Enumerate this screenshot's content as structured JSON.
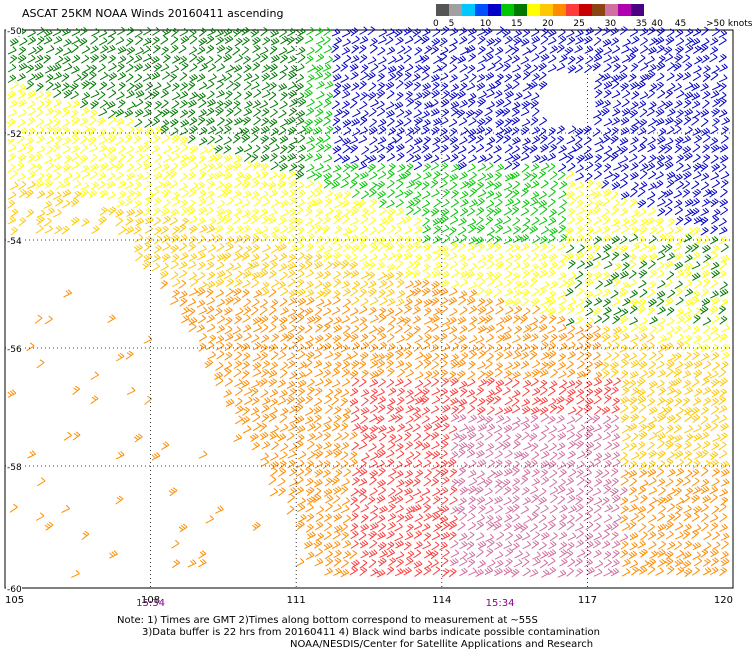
{
  "title": "ASCAT 25KM NOAA Winds 20160411 ascending",
  "legend": {
    "colors": [
      "#555555",
      "#a0a0a0",
      "#00c8ff",
      "#0050ff",
      "#0000c8",
      "#00c800",
      "#007800",
      "#ffff00",
      "#ffc800",
      "#ff8c00",
      "#ff3c3c",
      "#c80000",
      "#8b4513",
      "#d070a0",
      "#b000b0",
      "#4b0082"
    ],
    "labels": [
      {
        "text": "0",
        "at": 0
      },
      {
        "text": "5",
        "at": 1
      },
      {
        "text": "10",
        "at": 3
      },
      {
        "text": "15",
        "at": 5
      },
      {
        "text": "20",
        "at": 7
      },
      {
        "text": "25",
        "at": 9
      },
      {
        "text": "30",
        "at": 11
      },
      {
        "text": "35",
        "at": 13
      },
      {
        "text": "40",
        "at": 14
      },
      {
        "text": "45",
        "at": 15.5
      },
      {
        "text": ">50 knots",
        "at": 17.5
      }
    ]
  },
  "map": {
    "lon_range": [
      105,
      120
    ],
    "lat_range": [
      -60,
      -50
    ],
    "lon_ticks": [
      "105",
      "108",
      "111",
      "114",
      "117",
      "120"
    ],
    "lat_ticks": [
      "-50",
      "-52",
      "-54",
      "-56",
      "-58",
      "-60"
    ],
    "grid": "dotted",
    "times": [
      {
        "text": "15:34",
        "lon": 108
      },
      {
        "text": "15:34",
        "lon": 115.2
      }
    ],
    "wind_colors": {
      "dark_green": "#007800",
      "green": "#00c800",
      "blue": "#0000c8",
      "yellow": "#ffff00",
      "light_orange": "#ffc800",
      "orange": "#ff8c00",
      "red": "#ff3c3c",
      "magenta": "#d070a0"
    }
  },
  "notes": {
    "line1": "Note: 1) Times are GMT 2)Times along bottom correspond to measurement at ~55S",
    "line2": "3)Data buffer is 22 hrs from 20160411 4) Black wind barbs indicate possible contamination",
    "line3": "NOAA/NESDIS/Center for Satellite Applications and Research"
  }
}
